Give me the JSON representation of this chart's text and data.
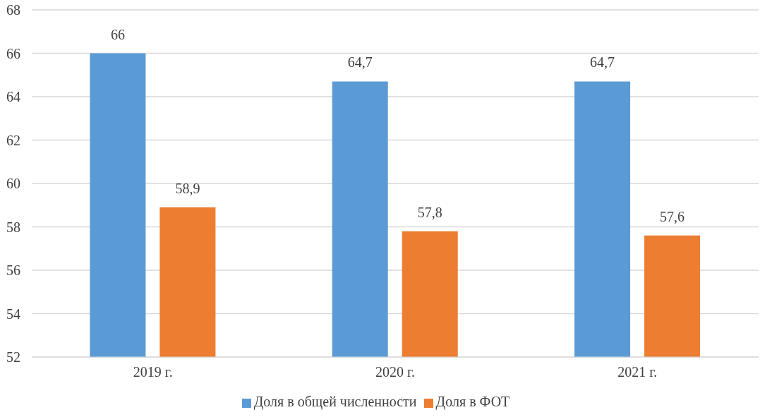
{
  "chart_data": {
    "type": "bar",
    "categories": [
      "2019 г.",
      "2020 г.",
      "2021 г."
    ],
    "series": [
      {
        "name": "Доля в общей численности",
        "color": "#5b9bd5",
        "values": [
          66,
          64.7,
          64.7
        ],
        "value_labels": [
          "66",
          "64,7",
          "64,7"
        ]
      },
      {
        "name": "Доля в ФОТ",
        "color": "#ed7d31",
        "values": [
          58.9,
          57.8,
          57.6
        ],
        "value_labels": [
          "58,9",
          "57,8",
          "57,6"
        ]
      }
    ],
    "ylim": [
      52,
      68
    ],
    "yticks": [
      52,
      54,
      56,
      58,
      60,
      62,
      64,
      66,
      68
    ],
    "grid": "y",
    "legend": "bottom"
  }
}
